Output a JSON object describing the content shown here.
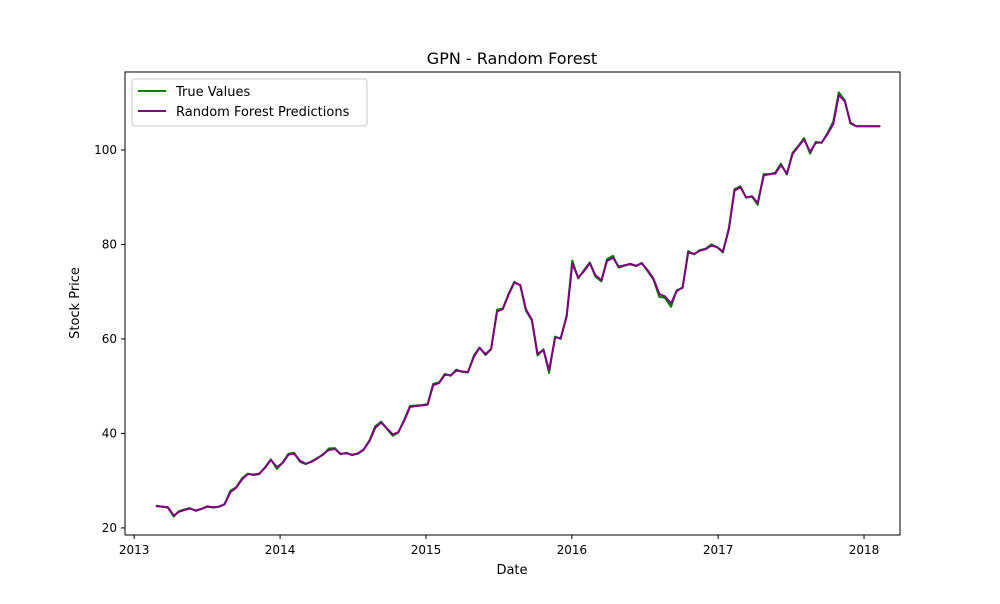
{
  "chart_data": {
    "type": "line",
    "title": "GPN - Random Forest",
    "xlabel": "Date",
    "ylabel": "Stock Price",
    "x_axis": "date",
    "xlim": [
      "2012-12-09",
      "2018-04-01"
    ],
    "ylim": [
      18.5,
      116.5
    ],
    "x_ticks": [
      {
        "value": "2013-01-01",
        "label": "2013"
      },
      {
        "value": "2014-01-01",
        "label": "2014"
      },
      {
        "value": "2015-01-01",
        "label": "2015"
      },
      {
        "value": "2016-01-01",
        "label": "2016"
      },
      {
        "value": "2017-01-01",
        "label": "2017"
      },
      {
        "value": "2018-01-01",
        "label": "2018"
      }
    ],
    "y_ticks": [
      {
        "value": 20,
        "label": "20"
      },
      {
        "value": 40,
        "label": "40"
      },
      {
        "value": 60,
        "label": "60"
      },
      {
        "value": 80,
        "label": "80"
      },
      {
        "value": 100,
        "label": "100"
      }
    ],
    "grid": false,
    "legend_position": "top-left",
    "series": [
      {
        "name": "True Values",
        "color": "#008000",
        "x": [
          "2013-02-26",
          "2013-03-26",
          "2013-04-10",
          "2013-04-22",
          "2013-05-06",
          "2013-05-20",
          "2013-06-04",
          "2013-06-18",
          "2013-07-03",
          "2013-07-17",
          "2013-08-01",
          "2013-08-15",
          "2013-08-30",
          "2013-09-13",
          "2013-09-28",
          "2013-10-12",
          "2013-10-27",
          "2013-11-10",
          "2013-11-25",
          "2013-12-09",
          "2013-12-24",
          "2014-01-07",
          "2014-01-22",
          "2014-02-05",
          "2014-02-20",
          "2014-03-06",
          "2014-03-21",
          "2014-04-04",
          "2014-04-19",
          "2014-05-03",
          "2014-05-18",
          "2014-06-01",
          "2014-06-16",
          "2014-06-30",
          "2014-07-15",
          "2014-07-29",
          "2014-08-13",
          "2014-08-27",
          "2014-09-11",
          "2014-09-25",
          "2014-10-10",
          "2014-10-24",
          "2014-11-08",
          "2014-11-22",
          "2014-12-07",
          "2014-12-21",
          "2015-01-05",
          "2015-01-19",
          "2015-02-03",
          "2015-02-17",
          "2015-03-04",
          "2015-03-18",
          "2015-04-02",
          "2015-04-16",
          "2015-05-01",
          "2015-05-15",
          "2015-05-30",
          "2015-06-13",
          "2015-06-28",
          "2015-07-12",
          "2015-07-27",
          "2015-08-10",
          "2015-08-25",
          "2015-09-08",
          "2015-09-23",
          "2015-10-07",
          "2015-10-22",
          "2015-11-05",
          "2015-11-20",
          "2015-12-04",
          "2015-12-19",
          "2016-01-02",
          "2016-01-17",
          "2016-01-31",
          "2016-02-15",
          "2016-02-29",
          "2016-03-15",
          "2016-03-29",
          "2016-04-13",
          "2016-04-27",
          "2016-05-12",
          "2016-05-26",
          "2016-06-10",
          "2016-06-24",
          "2016-07-09",
          "2016-07-23",
          "2016-08-07",
          "2016-08-21",
          "2016-09-05",
          "2016-09-19",
          "2016-10-04",
          "2016-10-18",
          "2016-11-02",
          "2016-11-16",
          "2016-12-01",
          "2016-12-15",
          "2016-12-30",
          "2017-01-13",
          "2017-01-28",
          "2017-02-11",
          "2017-02-26",
          "2017-03-12",
          "2017-03-27",
          "2017-04-10",
          "2017-04-25",
          "2017-05-09",
          "2017-05-24",
          "2017-06-07",
          "2017-06-22",
          "2017-07-06",
          "2017-07-21",
          "2017-08-04",
          "2017-08-19",
          "2017-09-02",
          "2017-09-17",
          "2017-10-01",
          "2017-10-16",
          "2017-10-30",
          "2017-11-14",
          "2017-11-28",
          "2017-12-13",
          "2017-12-27",
          "2018-01-11",
          "2018-01-25",
          "2018-02-09"
        ],
        "values": [
          24.7,
          24.3,
          22.4,
          23.5,
          23.9,
          24.2,
          23.6,
          24.0,
          24.6,
          24.3,
          24.5,
          25.0,
          27.9,
          28.6,
          30.5,
          31.5,
          31.2,
          31.4,
          32.9,
          34.5,
          32.5,
          33.8,
          35.7,
          35.9,
          34.0,
          33.5,
          34.1,
          34.8,
          35.5,
          36.8,
          36.9,
          35.6,
          35.9,
          35.4,
          35.7,
          36.5,
          38.6,
          41.5,
          42.5,
          41.0,
          39.5,
          40.2,
          43.0,
          45.8,
          45.9,
          46.0,
          46.2,
          50.5,
          50.8,
          52.6,
          52.2,
          53.5,
          53.0,
          52.9,
          56.5,
          58.2,
          56.6,
          57.8,
          66.2,
          66.4,
          69.6,
          72.1,
          71.3,
          66.0,
          63.9,
          56.5,
          57.8,
          52.8,
          60.5,
          60.0,
          65.0,
          76.6,
          72.8,
          74.5,
          76.2,
          73.2,
          72.2,
          76.9,
          77.6,
          75.1,
          75.5,
          75.8,
          75.4,
          76.1,
          74.3,
          72.6,
          68.9,
          68.7,
          66.8,
          70.3,
          70.8,
          78.6,
          77.9,
          78.8,
          79.1,
          80.0,
          79.4,
          78.3,
          83.5,
          91.7,
          92.3,
          89.9,
          90.1,
          88.4,
          94.9,
          94.8,
          95.2,
          97.1,
          94.8,
          99.4,
          100.9,
          102.5,
          99.2,
          101.7,
          101.5,
          103.5,
          106.0,
          112.2,
          110.5,
          105.6,
          105.0,
          105.0,
          105.0,
          105.0,
          105.0
        ]
      },
      {
        "name": "Random Forest Predictions",
        "color": "#800080",
        "x": [
          "2013-02-26",
          "2013-03-26",
          "2013-04-10",
          "2013-04-22",
          "2013-05-06",
          "2013-05-20",
          "2013-06-04",
          "2013-06-18",
          "2013-07-03",
          "2013-07-17",
          "2013-08-01",
          "2013-08-15",
          "2013-08-30",
          "2013-09-13",
          "2013-09-28",
          "2013-10-12",
          "2013-10-27",
          "2013-11-10",
          "2013-11-25",
          "2013-12-09",
          "2013-12-24",
          "2014-01-07",
          "2014-01-22",
          "2014-02-05",
          "2014-02-20",
          "2014-03-06",
          "2014-03-21",
          "2014-04-04",
          "2014-04-19",
          "2014-05-03",
          "2014-05-18",
          "2014-06-01",
          "2014-06-16",
          "2014-06-30",
          "2014-07-15",
          "2014-07-29",
          "2014-08-13",
          "2014-08-27",
          "2014-09-11",
          "2014-09-25",
          "2014-10-10",
          "2014-10-24",
          "2014-11-08",
          "2014-11-22",
          "2014-12-07",
          "2014-12-21",
          "2015-01-05",
          "2015-01-19",
          "2015-02-03",
          "2015-02-17",
          "2015-03-04",
          "2015-03-18",
          "2015-04-02",
          "2015-04-16",
          "2015-05-01",
          "2015-05-15",
          "2015-05-30",
          "2015-06-13",
          "2015-06-28",
          "2015-07-12",
          "2015-07-27",
          "2015-08-10",
          "2015-08-25",
          "2015-09-08",
          "2015-09-23",
          "2015-10-07",
          "2015-10-22",
          "2015-11-05",
          "2015-11-20",
          "2015-12-04",
          "2015-12-19",
          "2016-01-02",
          "2016-01-17",
          "2016-01-31",
          "2016-02-15",
          "2016-02-29",
          "2016-03-15",
          "2016-03-29",
          "2016-04-13",
          "2016-04-27",
          "2016-05-12",
          "2016-05-26",
          "2016-06-10",
          "2016-06-24",
          "2016-07-09",
          "2016-07-23",
          "2016-08-07",
          "2016-08-21",
          "2016-09-05",
          "2016-09-19",
          "2016-10-04",
          "2016-10-18",
          "2016-11-02",
          "2016-11-16",
          "2016-12-01",
          "2016-12-15",
          "2016-12-30",
          "2017-01-13",
          "2017-01-28",
          "2017-02-11",
          "2017-02-26",
          "2017-03-12",
          "2017-03-27",
          "2017-04-10",
          "2017-04-25",
          "2017-05-09",
          "2017-05-24",
          "2017-06-07",
          "2017-06-22",
          "2017-07-06",
          "2017-07-21",
          "2017-08-04",
          "2017-08-19",
          "2017-09-02",
          "2017-09-17",
          "2017-10-01",
          "2017-10-16",
          "2017-10-30",
          "2017-11-14",
          "2017-11-28",
          "2017-12-13",
          "2017-12-27",
          "2018-01-11",
          "2018-01-25",
          "2018-02-09"
        ],
        "values": [
          24.6,
          24.4,
          22.6,
          23.4,
          23.8,
          24.1,
          23.7,
          24.0,
          24.5,
          24.4,
          24.5,
          25.0,
          27.6,
          28.5,
          30.3,
          31.4,
          31.3,
          31.5,
          32.8,
          34.4,
          32.9,
          33.7,
          35.5,
          35.7,
          34.2,
          33.6,
          34.0,
          34.7,
          35.6,
          36.5,
          36.7,
          35.7,
          35.8,
          35.5,
          35.8,
          36.6,
          38.4,
          41.2,
          42.3,
          41.1,
          39.8,
          40.3,
          42.8,
          45.6,
          45.8,
          45.9,
          46.1,
          50.2,
          50.7,
          52.4,
          52.3,
          53.3,
          53.1,
          53.0,
          56.2,
          58.1,
          56.8,
          57.9,
          65.8,
          66.3,
          69.4,
          71.9,
          71.4,
          66.3,
          64.1,
          56.9,
          57.6,
          53.4,
          60.3,
          60.2,
          64.8,
          75.9,
          73.0,
          74.3,
          76.0,
          73.5,
          72.4,
          76.5,
          77.2,
          75.3,
          75.6,
          75.9,
          75.5,
          76.0,
          74.5,
          72.8,
          69.5,
          69.0,
          67.5,
          70.1,
          70.9,
          78.3,
          78.0,
          78.7,
          79.0,
          79.8,
          79.4,
          78.5,
          83.2,
          91.4,
          92.1,
          90.0,
          90.2,
          88.8,
          94.6,
          94.9,
          95.0,
          96.8,
          95.0,
          99.1,
          100.8,
          102.2,
          99.6,
          101.5,
          101.6,
          103.3,
          105.5,
          111.6,
          110.3,
          105.8,
          105.0,
          105.0,
          105.0,
          105.0,
          105.0
        ]
      }
    ]
  }
}
